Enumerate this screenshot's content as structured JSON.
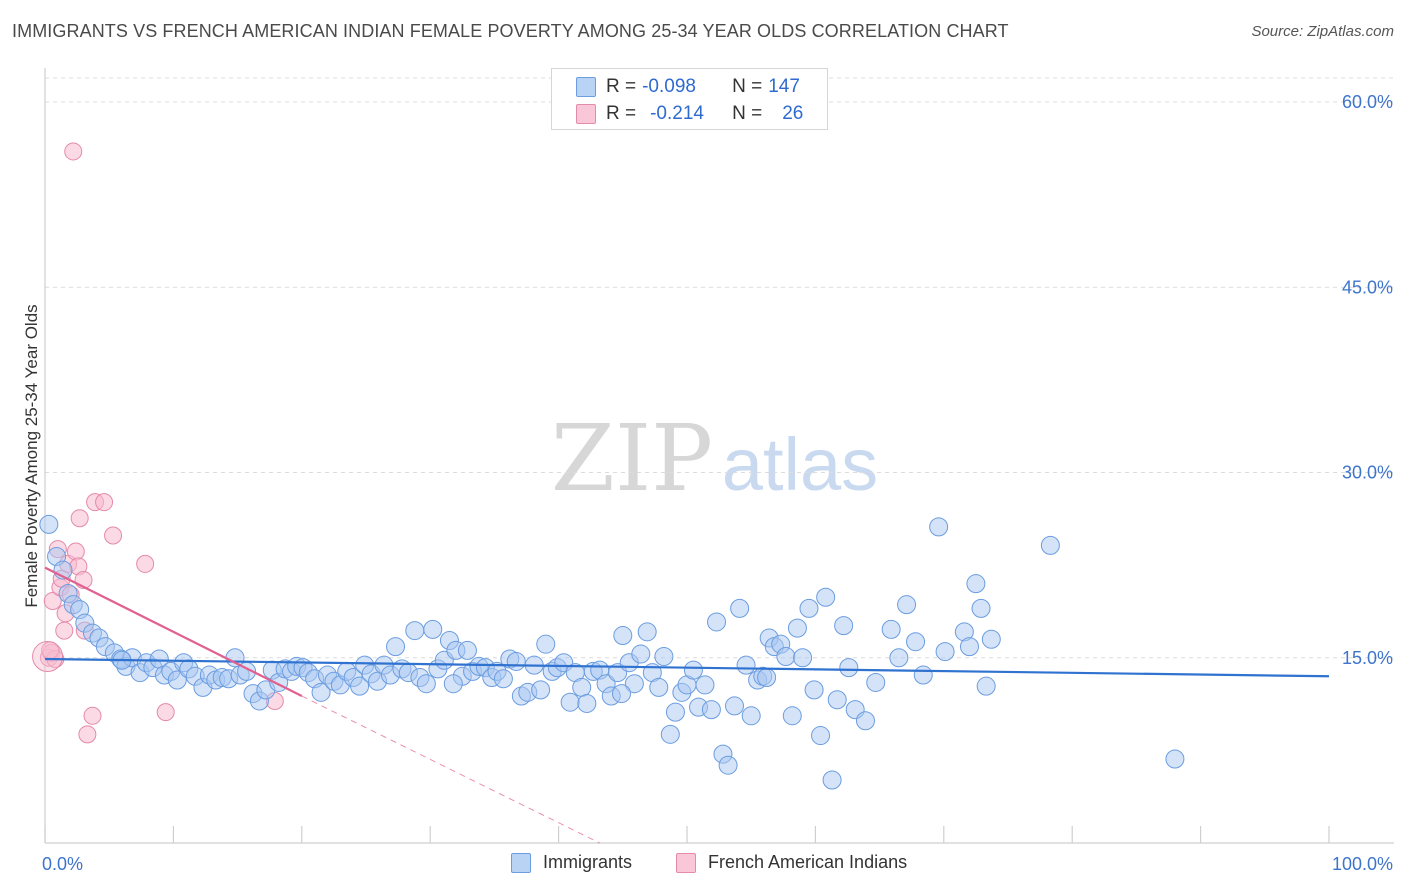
{
  "title": "IMMIGRANTS VS FRENCH AMERICAN INDIAN FEMALE POVERTY AMONG 25-34 YEAR OLDS CORRELATION CHART",
  "source": "Source: ZipAtlas.com",
  "watermark": {
    "zip": "ZIP",
    "atlas": "atlas"
  },
  "legend": {
    "series1": {
      "r_label": "R =",
      "r_value": "-0.098",
      "n_label": "N =",
      "n_value": "147"
    },
    "series2": {
      "r_label": "R =",
      "r_value": "-0.214",
      "n_label": "N =",
      "n_value": "26"
    }
  },
  "colors": {
    "immigrants_fill": "#a9c8f2",
    "immigrants_stroke": "#6b9de0",
    "immigrants_line": "#2f72d0",
    "french_fill": "#f7bcd0",
    "french_stroke": "#e48aaa",
    "french_line": "#e0608e",
    "axis_text": "#3d74cc",
    "grid": "#dcdcdc"
  },
  "chart_data": {
    "type": "scatter",
    "title": "IMMIGRANTS VS FRENCH AMERICAN INDIAN FEMALE POVERTY AMONG 25-34 YEAR OLDS CORRELATION CHART",
    "xlabel": "",
    "ylabel": "Female Poverty Among 25-34 Year Olds",
    "x_tick_labels": [
      "0.0%",
      "100.0%"
    ],
    "y_tick_labels": [
      "15.0%",
      "30.0%",
      "45.0%",
      "60.0%"
    ],
    "y_ticks": [
      15,
      30,
      45,
      60
    ],
    "xlim": [
      0,
      100
    ],
    "ylim": [
      0,
      63
    ],
    "legend_position": "top-center",
    "series": [
      {
        "name": "Immigrants",
        "r": -0.098,
        "n": 147,
        "trend": {
          "x": [
            0,
            100
          ],
          "y": [
            14.9,
            13.5
          ]
        },
        "points": [
          [
            0.3,
            25.8
          ],
          [
            0.9,
            23.2
          ],
          [
            1.4,
            22.1
          ],
          [
            1.8,
            20.2
          ],
          [
            2.2,
            19.3
          ],
          [
            2.7,
            18.9
          ],
          [
            3.1,
            17.8
          ],
          [
            3.7,
            17.0
          ],
          [
            4.2,
            16.6
          ],
          [
            4.7,
            15.9
          ],
          [
            5.4,
            15.4
          ],
          [
            5.9,
            14.9
          ],
          [
            6.3,
            14.3
          ],
          [
            6.8,
            15.0
          ],
          [
            7.4,
            13.8
          ],
          [
            7.9,
            14.6
          ],
          [
            8.4,
            14.2
          ],
          [
            8.9,
            14.9
          ],
          [
            9.3,
            13.6
          ],
          [
            9.8,
            13.9
          ],
          [
            10.3,
            13.2
          ],
          [
            10.8,
            14.6
          ],
          [
            11.2,
            14.1
          ],
          [
            11.7,
            13.5
          ],
          [
            12.3,
            12.6
          ],
          [
            12.8,
            13.6
          ],
          [
            13.3,
            13.2
          ],
          [
            13.8,
            13.4
          ],
          [
            14.3,
            13.3
          ],
          [
            14.8,
            15.0
          ],
          [
            15.2,
            13.6
          ],
          [
            15.7,
            13.9
          ],
          [
            16.2,
            12.1
          ],
          [
            16.7,
            11.5
          ],
          [
            17.2,
            12.4
          ],
          [
            17.7,
            14.0
          ],
          [
            18.2,
            13.0
          ],
          [
            18.7,
            14.1
          ],
          [
            19.2,
            13.9
          ],
          [
            19.6,
            14.3
          ],
          [
            20.1,
            14.2
          ],
          [
            20.5,
            13.8
          ],
          [
            21.0,
            13.3
          ],
          [
            21.5,
            12.2
          ],
          [
            22.0,
            13.6
          ],
          [
            22.5,
            13.1
          ],
          [
            23.0,
            12.8
          ],
          [
            23.5,
            13.9
          ],
          [
            24.0,
            13.4
          ],
          [
            24.5,
            12.7
          ],
          [
            24.9,
            14.4
          ],
          [
            25.4,
            13.7
          ],
          [
            25.9,
            13.1
          ],
          [
            26.4,
            14.4
          ],
          [
            26.9,
            13.6
          ],
          [
            27.3,
            15.9
          ],
          [
            27.8,
            14.1
          ],
          [
            28.3,
            13.8
          ],
          [
            28.8,
            17.2
          ],
          [
            29.2,
            13.4
          ],
          [
            29.7,
            12.9
          ],
          [
            30.2,
            17.3
          ],
          [
            30.6,
            14.1
          ],
          [
            31.1,
            14.8
          ],
          [
            31.5,
            16.4
          ],
          [
            32.0,
            15.6
          ],
          [
            32.5,
            13.5
          ],
          [
            32.9,
            15.6
          ],
          [
            33.3,
            13.9
          ],
          [
            33.8,
            14.3
          ],
          [
            34.3,
            14.2
          ],
          [
            34.8,
            13.4
          ],
          [
            35.2,
            13.9
          ],
          [
            35.7,
            13.3
          ],
          [
            36.2,
            14.9
          ],
          [
            36.7,
            14.7
          ],
          [
            37.1,
            11.9
          ],
          [
            37.6,
            12.2
          ],
          [
            38.1,
            14.4
          ],
          [
            38.6,
            12.4
          ],
          [
            39.0,
            16.1
          ],
          [
            39.5,
            13.9
          ],
          [
            39.9,
            14.2
          ],
          [
            40.4,
            14.6
          ],
          [
            40.9,
            11.4
          ],
          [
            41.3,
            13.8
          ],
          [
            41.8,
            12.6
          ],
          [
            42.2,
            11.3
          ],
          [
            42.7,
            13.9
          ],
          [
            43.2,
            14.0
          ],
          [
            43.7,
            12.9
          ],
          [
            44.1,
            11.9
          ],
          [
            44.6,
            13.8
          ],
          [
            45.0,
            16.8
          ],
          [
            45.5,
            14.6
          ],
          [
            45.9,
            12.9
          ],
          [
            46.4,
            15.3
          ],
          [
            46.9,
            17.1
          ],
          [
            47.3,
            13.8
          ],
          [
            47.8,
            12.6
          ],
          [
            48.2,
            15.1
          ],
          [
            48.7,
            8.8
          ],
          [
            49.1,
            10.6
          ],
          [
            49.6,
            12.2
          ],
          [
            50.0,
            12.8
          ],
          [
            50.5,
            14.0
          ],
          [
            50.9,
            11.0
          ],
          [
            51.4,
            12.8
          ],
          [
            51.9,
            10.8
          ],
          [
            52.3,
            17.9
          ],
          [
            52.8,
            7.2
          ],
          [
            53.2,
            6.3
          ],
          [
            53.7,
            11.1
          ],
          [
            54.1,
            19.0
          ],
          [
            54.6,
            14.4
          ],
          [
            55.0,
            10.3
          ],
          [
            55.5,
            13.2
          ],
          [
            55.9,
            13.5
          ],
          [
            56.4,
            16.6
          ],
          [
            56.8,
            15.9
          ],
          [
            57.3,
            16.1
          ],
          [
            57.7,
            15.1
          ],
          [
            58.2,
            10.3
          ],
          [
            58.6,
            17.4
          ],
          [
            59.0,
            15.0
          ],
          [
            59.5,
            19.0
          ],
          [
            59.9,
            12.4
          ],
          [
            60.4,
            8.7
          ],
          [
            60.8,
            19.9
          ],
          [
            61.3,
            5.1
          ],
          [
            61.7,
            11.6
          ],
          [
            62.2,
            17.6
          ],
          [
            62.6,
            14.2
          ],
          [
            63.1,
            10.8
          ],
          [
            63.9,
            9.9
          ],
          [
            64.7,
            13.0
          ],
          [
            65.9,
            17.3
          ],
          [
            66.5,
            15.0
          ],
          [
            67.1,
            19.3
          ],
          [
            67.8,
            16.3
          ],
          [
            68.4,
            13.6
          ],
          [
            69.6,
            25.6
          ],
          [
            71.6,
            17.1
          ],
          [
            72.0,
            15.9
          ],
          [
            72.5,
            21.0
          ],
          [
            72.9,
            19.0
          ],
          [
            73.3,
            12.7
          ],
          [
            73.7,
            16.5
          ],
          [
            78.3,
            24.1
          ],
          [
            88.0,
            6.8
          ],
          [
            6.0,
            14.8
          ],
          [
            31.8,
            12.9
          ],
          [
            44.9,
            12.1
          ],
          [
            56.2,
            13.4
          ],
          [
            70.1,
            15.5
          ]
        ]
      },
      {
        "name": "French American Indians",
        "r": -0.214,
        "n": 26,
        "trend": {
          "x": [
            0,
            20.0
          ],
          "y": [
            22.3,
            11.9
          ]
        },
        "trend_extension": {
          "x": [
            20.0,
            43.2
          ],
          "y": [
            11.9,
            0
          ]
        },
        "points": [
          [
            0.3,
            15.0
          ],
          [
            0.5,
            15.4
          ],
          [
            0.6,
            19.6
          ],
          [
            0.8,
            14.9
          ],
          [
            1.0,
            23.8
          ],
          [
            1.2,
            20.7
          ],
          [
            1.3,
            21.4
          ],
          [
            1.5,
            17.2
          ],
          [
            1.6,
            18.6
          ],
          [
            1.8,
            22.6
          ],
          [
            2.0,
            20.1
          ],
          [
            2.2,
            56.0
          ],
          [
            2.4,
            23.6
          ],
          [
            2.6,
            22.4
          ],
          [
            2.7,
            26.3
          ],
          [
            3.0,
            21.3
          ],
          [
            3.1,
            17.2
          ],
          [
            3.3,
            8.8
          ],
          [
            3.7,
            10.3
          ],
          [
            3.9,
            27.6
          ],
          [
            4.6,
            27.6
          ],
          [
            5.3,
            24.9
          ],
          [
            7.8,
            22.6
          ],
          [
            9.4,
            10.6
          ],
          [
            17.9,
            11.5
          ],
          [
            0.4,
            15.6
          ]
        ]
      }
    ]
  }
}
